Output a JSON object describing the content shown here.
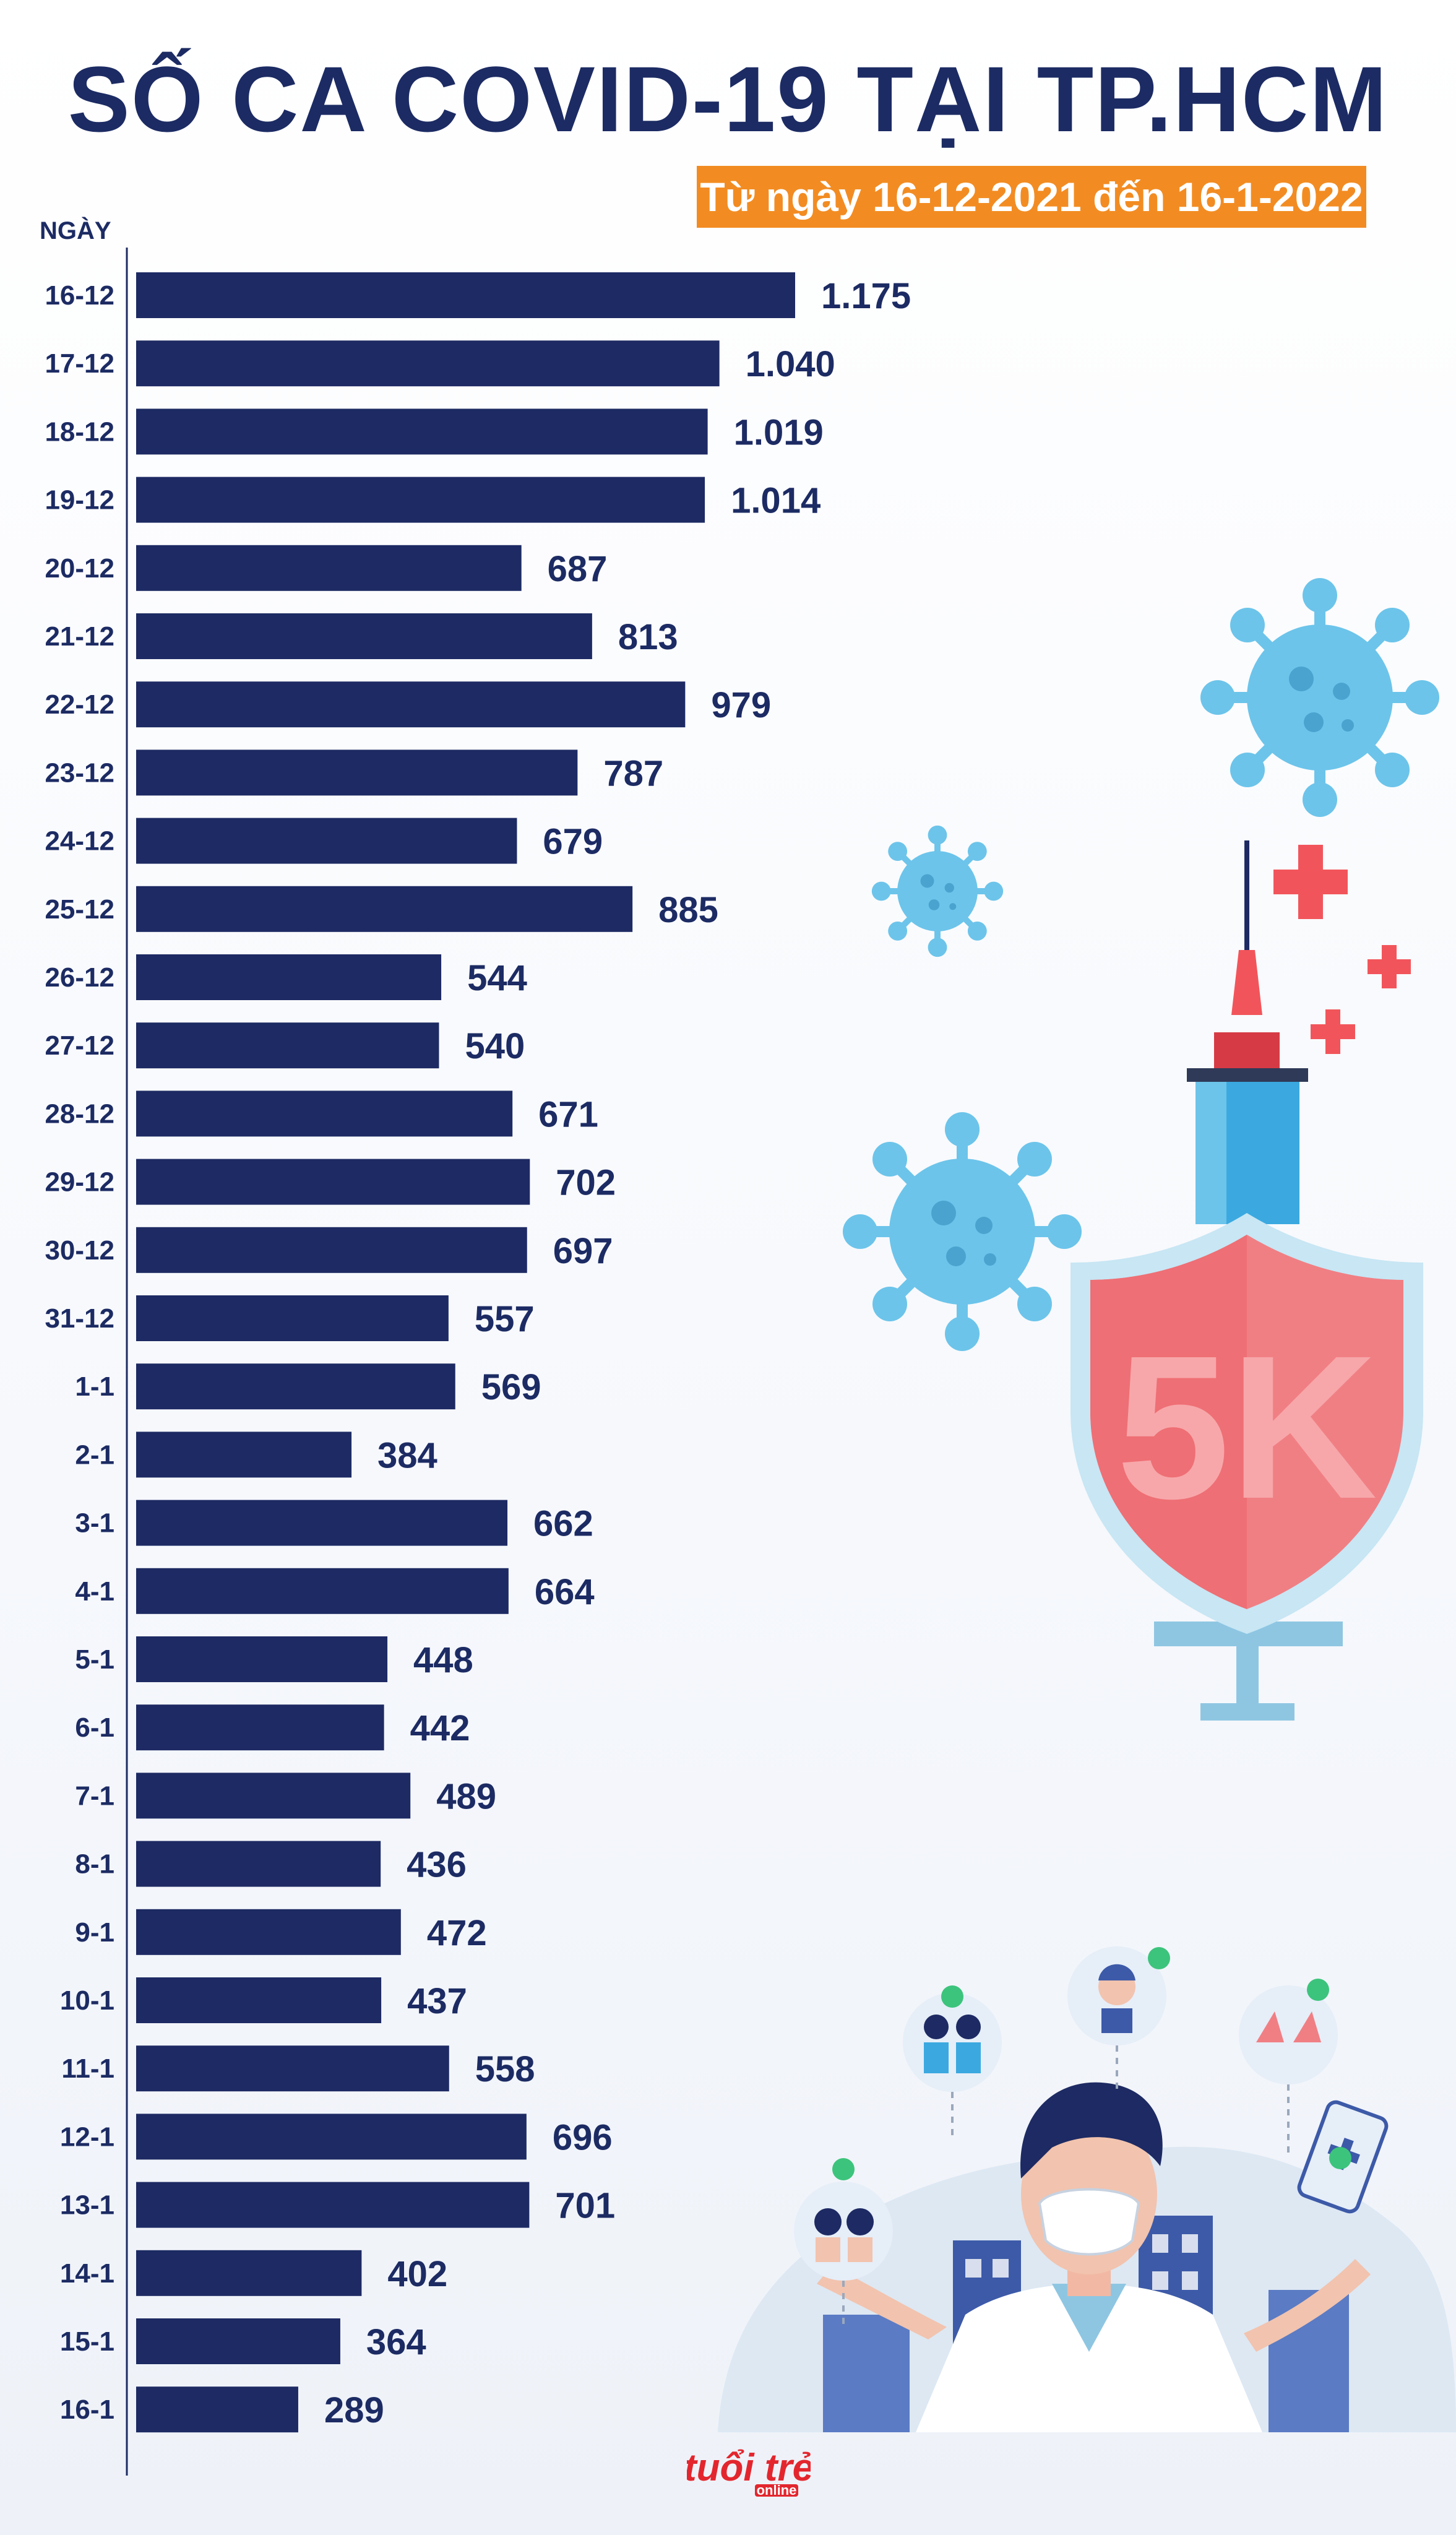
{
  "title": "SỐ CA COVID-19 TẠI TP.HCM",
  "subtitle": "Từ ngày 16-12-2021 đến 16-1-2022",
  "logo": {
    "text": "tuổi trẻ",
    "sub": "online"
  },
  "colors": {
    "bar": "#1d2a63",
    "accent": "#f28c22",
    "text": "#1c2b63"
  },
  "chart_data": {
    "type": "bar",
    "orientation": "horizontal",
    "ylabel": "NGÀY",
    "categories": [
      "16-12",
      "17-12",
      "18-12",
      "19-12",
      "20-12",
      "21-12",
      "22-12",
      "23-12",
      "24-12",
      "25-12",
      "26-12",
      "27-12",
      "28-12",
      "29-12",
      "30-12",
      "31-12",
      "1-1",
      "2-1",
      "3-1",
      "4-1",
      "5-1",
      "6-1",
      "7-1",
      "8-1",
      "9-1",
      "10-1",
      "11-1",
      "12-1",
      "13-1",
      "14-1",
      "15-1",
      "16-1"
    ],
    "values": [
      1175,
      1040,
      1019,
      1014,
      687,
      813,
      979,
      787,
      679,
      885,
      544,
      540,
      671,
      702,
      697,
      557,
      569,
      384,
      662,
      664,
      448,
      442,
      489,
      436,
      472,
      437,
      558,
      696,
      701,
      402,
      364,
      289
    ],
    "value_labels": [
      "1.175",
      "1.040",
      "1.019",
      "1.014",
      "687",
      "813",
      "979",
      "787",
      "679",
      "885",
      "544",
      "540",
      "671",
      "702",
      "697",
      "557",
      "569",
      "384",
      "662",
      "664",
      "448",
      "442",
      "489",
      "436",
      "472",
      "437",
      "558",
      "696",
      "701",
      "402",
      "364",
      "289"
    ],
    "xlim": [
      0,
      1175
    ],
    "grid": false,
    "legend": "none"
  },
  "illustration": {
    "shield_text": "5K",
    "icons": [
      "virus-icon",
      "syringe-icon",
      "shield-icon",
      "plus-icon",
      "doctor-icon",
      "mask-icon",
      "handwash-icon",
      "phone-icon",
      "check-icon"
    ]
  }
}
